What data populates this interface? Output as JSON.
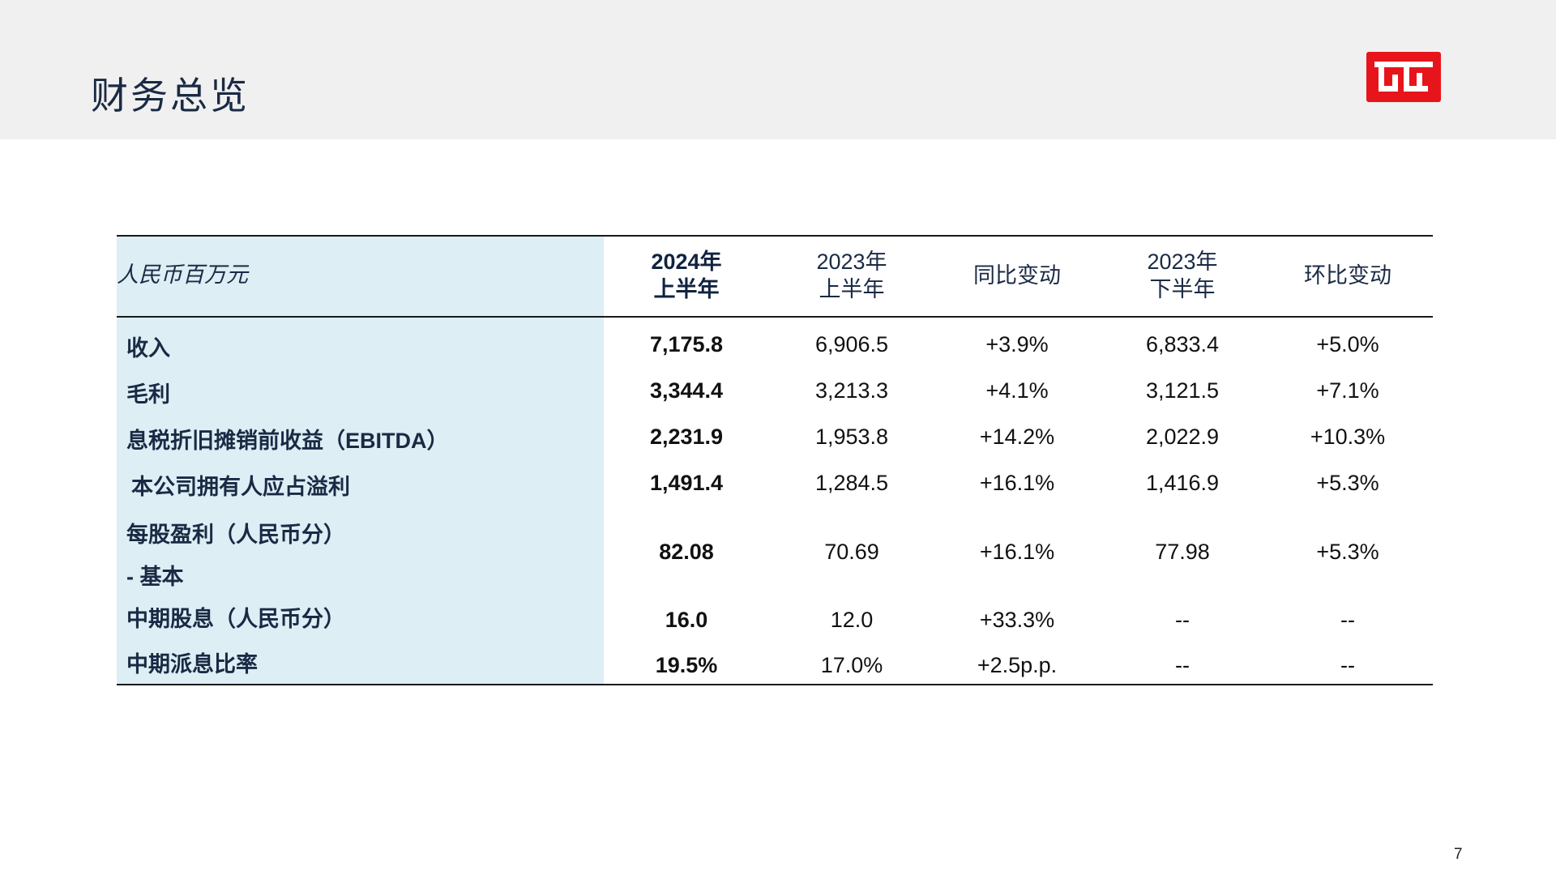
{
  "header": {
    "title": "财务总览"
  },
  "table": {
    "unit_label": "人民币百万元",
    "columns": [
      {
        "line1": "2024年",
        "line2": "上半年"
      },
      {
        "line1": "2023年",
        "line2": "上半年"
      },
      {
        "line1": "同比变动",
        "line2": ""
      },
      {
        "line1": "2023年",
        "line2": "下半年"
      },
      {
        "line1": "环比变动",
        "line2": ""
      }
    ],
    "rows": [
      {
        "label": "收入",
        "values": [
          "7,175.8",
          "6,906.5",
          "+3.9%",
          "6,833.4",
          "+5.0%"
        ]
      },
      {
        "label": "毛利",
        "values": [
          "3,344.4",
          "3,213.3",
          "+4.1%",
          "3,121.5",
          "+7.1%"
        ]
      },
      {
        "label": "息税折旧摊销前收益（EBITDA）",
        "values": [
          "2,231.9",
          "1,953.8",
          "+14.2%",
          "2,022.9",
          "+10.3%"
        ]
      },
      {
        "label": "本公司拥有人应占溢利",
        "values": [
          "1,491.4",
          "1,284.5",
          "+16.1%",
          "1,416.9",
          "+5.3%"
        ]
      },
      {
        "label": "每股盈利（人民币分）",
        "label2": "- 基本",
        "values": [
          "82.08",
          "70.69",
          "+16.1%",
          "77.98",
          "+5.3%"
        ]
      },
      {
        "label": "中期股息（人民币分）",
        "values": [
          "16.0",
          "12.0",
          "+33.3%",
          "--",
          "--"
        ]
      },
      {
        "label": "中期派息比率",
        "values": [
          "19.5%",
          "17.0%",
          "+2.5p.p.",
          "--",
          "--"
        ]
      }
    ]
  },
  "footer": {
    "page_number": "7"
  },
  "colors": {
    "header_band": "#f0f0f0",
    "label_column_bg": "#ddeef5",
    "logo_red": "#e8141b",
    "title_text": "#1a2a44"
  }
}
